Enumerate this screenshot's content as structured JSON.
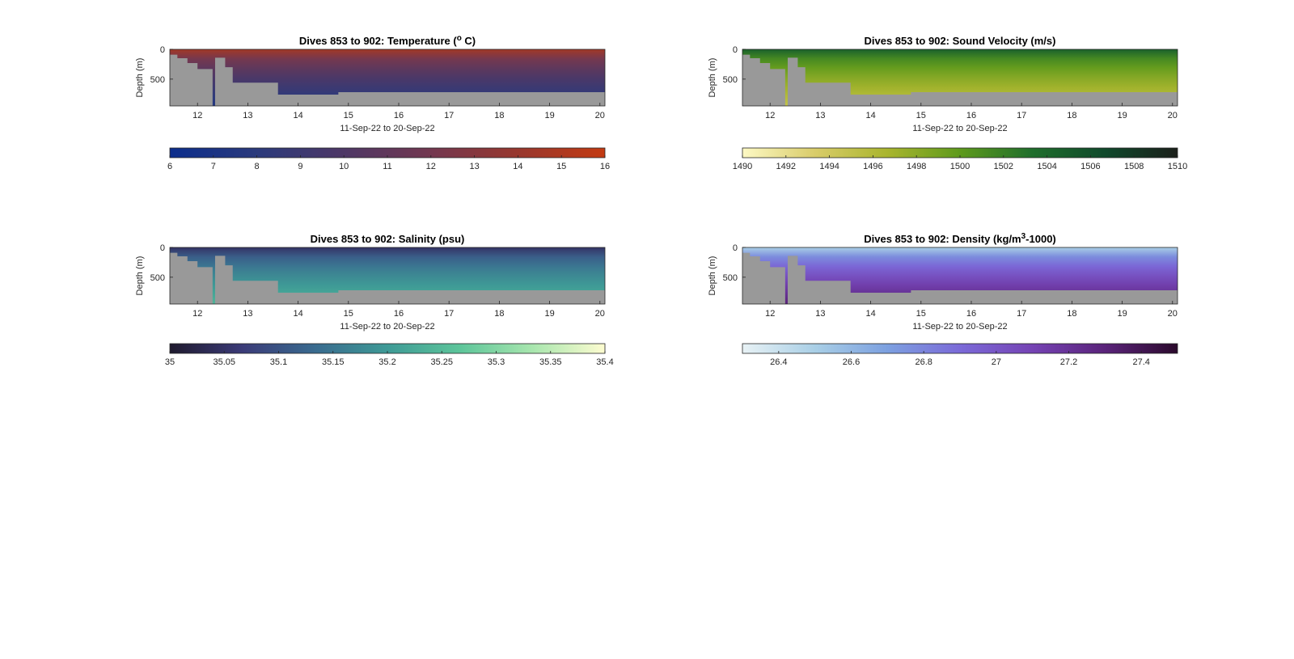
{
  "figure": {
    "colors": {
      "background": "#ffffff",
      "seabed": "#999999",
      "axis": "#262626"
    }
  },
  "chart_data": [
    {
      "type": "heatmap",
      "title_parts": [
        "Dives 853 to 902: Temperature (",
        "o",
        " C)"
      ],
      "title_sup_index": 1,
      "xlabel": "11-Sep-22 to 20-Sep-22",
      "ylabel": "Depth (m)",
      "x_ticks": [
        "12",
        "13",
        "14",
        "15",
        "16",
        "17",
        "18",
        "19",
        "20"
      ],
      "y_ticks": [
        "0",
        "500"
      ],
      "xlim": [
        11.45,
        20.1
      ],
      "ylim": [
        0,
        950
      ],
      "y_reversed": true,
      "max_depth_profile": {
        "x": [
          11.45,
          11.6,
          11.65,
          11.8,
          11.85,
          12.0,
          12.05,
          12.3,
          12.35,
          12.5,
          12.55,
          12.65,
          12.7,
          13.0,
          13.5,
          13.6,
          14.0,
          14.7,
          14.8,
          20.1
        ],
        "depth": [
          90,
          150,
          150,
          230,
          230,
          330,
          330,
          950,
          140,
          140,
          300,
          300,
          560,
          560,
          560,
          760,
          760,
          760,
          720,
          720
        ]
      },
      "colorbar": {
        "min": 6,
        "max": 16,
        "ticks": [
          "6",
          "7",
          "8",
          "9",
          "10",
          "11",
          "12",
          "13",
          "14",
          "15",
          "16"
        ],
        "stops": [
          "#0b2d8c",
          "#2b3a7c",
          "#4e3866",
          "#733850",
          "#98382e",
          "#c33a12"
        ]
      },
      "surface_value": 14.5,
      "deep_value": 7.5
    },
    {
      "type": "heatmap",
      "title_parts": [
        "Dives 853 to 902: Sound Velocity (m/s)"
      ],
      "title_sup_index": -1,
      "xlabel": "11-Sep-22 to 20-Sep-22",
      "ylabel": "Depth (m)",
      "x_ticks": [
        "12",
        "13",
        "14",
        "15",
        "16",
        "17",
        "18",
        "19",
        "20"
      ],
      "y_ticks": [
        "0",
        "500"
      ],
      "xlim": [
        11.45,
        20.1
      ],
      "ylim": [
        0,
        950
      ],
      "y_reversed": true,
      "max_depth_profile": {
        "x": [
          11.45,
          11.6,
          11.65,
          11.8,
          11.85,
          12.0,
          12.05,
          12.3,
          12.35,
          12.5,
          12.55,
          12.65,
          12.7,
          13.0,
          13.5,
          13.6,
          14.0,
          14.7,
          14.8,
          20.1
        ],
        "depth": [
          90,
          150,
          150,
          230,
          230,
          330,
          330,
          950,
          140,
          140,
          300,
          300,
          560,
          560,
          560,
          760,
          760,
          760,
          720,
          720
        ]
      },
      "colorbar": {
        "min": 1490,
        "max": 1510,
        "ticks": [
          "1490",
          "1492",
          "1494",
          "1496",
          "1498",
          "1500",
          "1502",
          "1504",
          "1506",
          "1508",
          "1510"
        ],
        "stops": [
          "#fdf9c4",
          "#d9cc6a",
          "#a9b52e",
          "#5e9a1c",
          "#1f6e2c",
          "#10492c",
          "#1b1f1a"
        ]
      },
      "surface_value": 1504.5,
      "deep_value": 1495.0
    },
    {
      "type": "heatmap",
      "title_parts": [
        "Dives 853 to 902: Salinity (psu)"
      ],
      "title_sup_index": -1,
      "xlabel": "11-Sep-22 to 20-Sep-22",
      "ylabel": "Depth (m)",
      "x_ticks": [
        "12",
        "13",
        "14",
        "15",
        "16",
        "17",
        "18",
        "19",
        "20"
      ],
      "y_ticks": [
        "0",
        "500"
      ],
      "xlim": [
        11.45,
        20.1
      ],
      "ylim": [
        0,
        950
      ],
      "y_reversed": true,
      "max_depth_profile": {
        "x": [
          11.45,
          11.6,
          11.65,
          11.8,
          11.85,
          12.0,
          12.05,
          12.3,
          12.35,
          12.5,
          12.55,
          12.65,
          12.7,
          13.0,
          13.5,
          13.6,
          14.0,
          14.7,
          14.8,
          20.1
        ],
        "depth": [
          90,
          150,
          150,
          230,
          230,
          330,
          330,
          950,
          140,
          140,
          300,
          300,
          560,
          560,
          560,
          760,
          760,
          760,
          720,
          720
        ]
      },
      "colorbar": {
        "min": 35,
        "max": 35.4,
        "ticks": [
          "35",
          "35.05",
          "35.1",
          "35.15",
          "35.2",
          "35.25",
          "35.3",
          "35.35",
          "35.4"
        ],
        "stops": [
          "#1f1a2e",
          "#3b3b78",
          "#3a6b8f",
          "#3e9a96",
          "#5dc59a",
          "#a8e6ae",
          "#fdfcd0"
        ]
      },
      "surface_value": 35.05,
      "deep_value": 35.24
    },
    {
      "type": "heatmap",
      "title_parts": [
        "Dives 853 to 902: Density (kg/m",
        "3",
        "-1000)"
      ],
      "title_sup_index": 1,
      "xlabel": "11-Sep-22 to 20-Sep-22",
      "ylabel": "Depth (m)",
      "x_ticks": [
        "12",
        "13",
        "14",
        "15",
        "16",
        "17",
        "18",
        "19",
        "20"
      ],
      "y_ticks": [
        "0",
        "500"
      ],
      "xlim": [
        11.45,
        20.1
      ],
      "ylim": [
        0,
        950
      ],
      "y_reversed": true,
      "max_depth_profile": {
        "x": [
          11.45,
          11.6,
          11.65,
          11.8,
          11.85,
          12.0,
          12.05,
          12.3,
          12.35,
          12.5,
          12.55,
          12.65,
          12.7,
          13.0,
          13.5,
          13.6,
          14.0,
          14.7,
          14.8,
          20.1
        ],
        "depth": [
          90,
          150,
          150,
          230,
          230,
          330,
          330,
          950,
          140,
          140,
          300,
          300,
          560,
          560,
          560,
          760,
          760,
          760,
          720,
          720
        ]
      },
      "colorbar": {
        "min": 26.3,
        "max": 27.5,
        "ticks": [
          "26.4",
          "26.6",
          "26.8",
          "27",
          "27.2",
          "27.4"
        ],
        "tick_values": [
          26.4,
          26.6,
          26.8,
          27,
          27.2,
          27.4
        ],
        "stops": [
          "#e8f2f5",
          "#a9cfe6",
          "#7ca0e0",
          "#7b6ad8",
          "#7543b4",
          "#5a237a",
          "#2b0a2c"
        ]
      },
      "surface_value": 26.5,
      "deep_value": 27.3
    }
  ]
}
